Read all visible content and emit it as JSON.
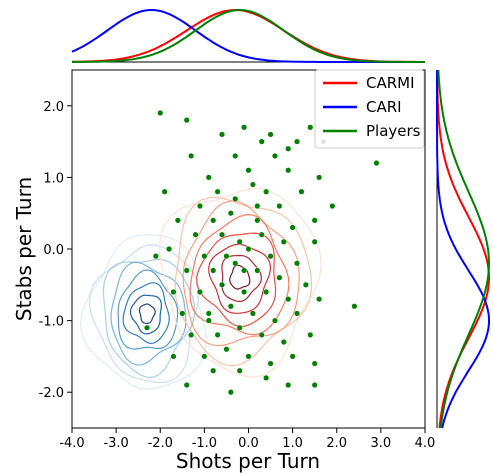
{
  "chart_data": {
    "type": "scatter",
    "title": "",
    "xlabel": "Shots per Turn",
    "ylabel": "Stabs per Turn",
    "xlim": [
      -4.0,
      4.0
    ],
    "ylim": [
      -2.5,
      2.5
    ],
    "xticks": [
      "-4.0",
      "-3.0",
      "-2.0",
      "-1.0",
      "0.0",
      "1.0",
      "2.0",
      "3.0",
      "4.0"
    ],
    "yticks": [
      "2.0",
      "1.0",
      "0.0",
      "-1.0",
      "-2.0"
    ],
    "legend_position": "top-right",
    "legend": [
      {
        "label": "CARMI",
        "color": "#ff0000"
      },
      {
        "label": "CARI",
        "color": "#0000ff"
      },
      {
        "label": "Players",
        "color": "#008000"
      }
    ],
    "series": [
      {
        "name": "CARMI",
        "kind": "kde-contour",
        "colormap": "reds",
        "color": "#ff0000",
        "center": [
          -0.2,
          -0.4
        ],
        "spread": [
          1.3,
          0.95
        ]
      },
      {
        "name": "CARI",
        "kind": "kde-contour",
        "colormap": "blues",
        "color": "#0000ff",
        "center": [
          -2.3,
          -0.9
        ],
        "spread": [
          1.0,
          0.8
        ]
      },
      {
        "name": "Players",
        "kind": "scatter",
        "color": "#008000",
        "points": [
          [
            -2.0,
            1.9
          ],
          [
            -1.4,
            1.8
          ],
          [
            -0.6,
            1.6
          ],
          [
            -0.1,
            1.7
          ],
          [
            0.5,
            1.6
          ],
          [
            1.4,
            1.7
          ],
          [
            0.3,
            1.5
          ],
          [
            0.9,
            1.4
          ],
          [
            1.7,
            1.5
          ],
          [
            -0.3,
            1.3
          ],
          [
            0.6,
            1.3
          ],
          [
            1.1,
            1.5
          ],
          [
            2.9,
            1.2
          ],
          [
            -1.3,
            1.3
          ],
          [
            -0.9,
            1.0
          ],
          [
            0.0,
            1.1
          ],
          [
            0.9,
            1.1
          ],
          [
            1.6,
            1.0
          ],
          [
            -0.7,
            0.8
          ],
          [
            0.1,
            0.9
          ],
          [
            0.4,
            0.8
          ],
          [
            1.2,
            0.8
          ],
          [
            1.9,
            0.6
          ],
          [
            -1.1,
            0.6
          ],
          [
            -0.3,
            0.7
          ],
          [
            0.7,
            0.6
          ],
          [
            1.5,
            0.4
          ],
          [
            -1.6,
            0.4
          ],
          [
            -0.8,
            0.4
          ],
          [
            -0.4,
            0.5
          ],
          [
            0.2,
            0.4
          ],
          [
            1.0,
            0.3
          ],
          [
            -1.2,
            0.2
          ],
          [
            -0.6,
            0.2
          ],
          [
            -0.2,
            0.1
          ],
          [
            0.3,
            0.2
          ],
          [
            0.8,
            0.1
          ],
          [
            1.5,
            0.1
          ],
          [
            -1.8,
            0.0
          ],
          [
            -1.0,
            -0.1
          ],
          [
            -0.5,
            -0.1
          ],
          [
            0.0,
            0.0
          ],
          [
            0.5,
            -0.1
          ],
          [
            1.1,
            -0.2
          ],
          [
            -1.4,
            -0.3
          ],
          [
            -0.8,
            -0.3
          ],
          [
            -0.3,
            -0.2
          ],
          [
            0.2,
            -0.3
          ],
          [
            0.7,
            -0.4
          ],
          [
            1.3,
            -0.5
          ],
          [
            2.4,
            -0.8
          ],
          [
            -1.7,
            -0.6
          ],
          [
            -1.1,
            -0.6
          ],
          [
            -0.6,
            -0.5
          ],
          [
            -0.1,
            -0.6
          ],
          [
            0.4,
            -0.6
          ],
          [
            0.9,
            -0.7
          ],
          [
            1.6,
            -0.7
          ],
          [
            -1.5,
            -0.9
          ],
          [
            -0.9,
            -0.9
          ],
          [
            -0.4,
            -0.8
          ],
          [
            0.1,
            -0.9
          ],
          [
            0.6,
            -1.0
          ],
          [
            1.1,
            -0.9
          ],
          [
            -1.3,
            -1.2
          ],
          [
            -0.7,
            -1.2
          ],
          [
            -0.2,
            -1.1
          ],
          [
            0.3,
            -1.2
          ],
          [
            0.8,
            -1.3
          ],
          [
            1.4,
            -1.2
          ],
          [
            -1.7,
            -1.5
          ],
          [
            -1.0,
            -1.5
          ],
          [
            -0.5,
            -1.4
          ],
          [
            0.0,
            -1.5
          ],
          [
            0.5,
            -1.6
          ],
          [
            1.0,
            -1.5
          ],
          [
            -0.8,
            -1.7
          ],
          [
            -0.2,
            -1.7
          ],
          [
            0.4,
            -1.8
          ],
          [
            1.5,
            -1.6
          ],
          [
            -1.4,
            -1.9
          ],
          [
            -0.4,
            -2.0
          ],
          [
            0.9,
            -1.9
          ],
          [
            1.5,
            -1.9
          ],
          [
            -2.3,
            -1.1
          ],
          [
            -2.1,
            -0.1
          ],
          [
            -1.9,
            0.8
          ],
          [
            -0.9,
            -1.0
          ],
          [
            -0.1,
            -0.3
          ],
          [
            0.2,
            0.6
          ]
        ]
      }
    ],
    "marginal_x": [
      {
        "name": "CARMI",
        "color": "#ff0000",
        "center": -0.3,
        "spread": 1.1
      },
      {
        "name": "CARI",
        "color": "#0000ff",
        "center": -2.2,
        "spread": 1.0
      },
      {
        "name": "Players",
        "color": "#008000",
        "center": -0.2,
        "spread": 1.0
      }
    ],
    "marginal_y": [
      {
        "name": "CARMI",
        "color": "#ff0000",
        "center": -0.4,
        "spread": 0.85
      },
      {
        "name": "CARI",
        "color": "#0000ff",
        "center": -1.0,
        "spread": 0.7
      },
      {
        "name": "Players",
        "color": "#008000",
        "center": -0.2,
        "spread": 1.0
      }
    ]
  }
}
